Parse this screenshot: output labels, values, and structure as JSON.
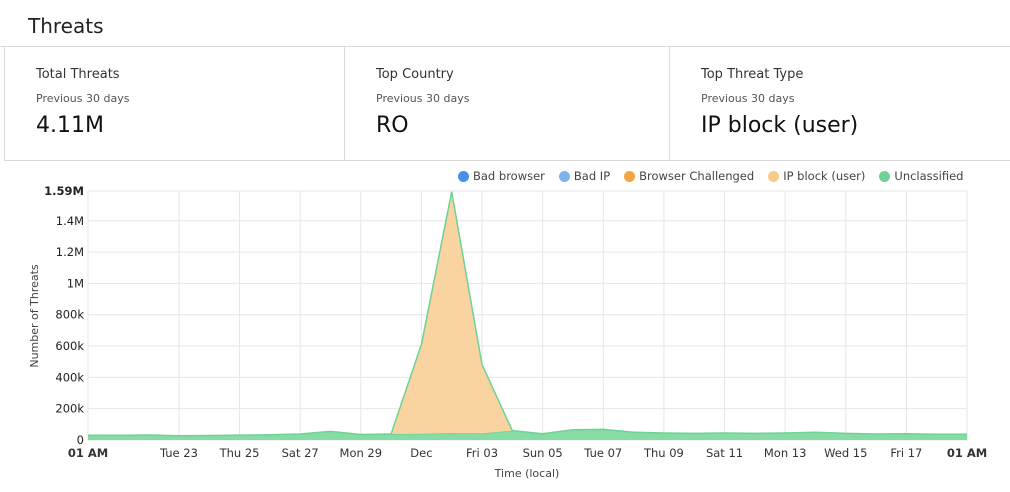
{
  "header": {
    "title": "Threats"
  },
  "stats": [
    {
      "label": "Total Threats",
      "sub": "Previous 30 days",
      "value": "4.11M"
    },
    {
      "label": "Top Country",
      "sub": "Previous 30 days",
      "value": "RO"
    },
    {
      "label": "Top Threat Type",
      "sub": "Previous 30 days",
      "value": "IP block (user)"
    }
  ],
  "legend": [
    {
      "name": "Bad browser",
      "color": "#4a8ee8"
    },
    {
      "name": "Bad IP",
      "color": "#7eb3ec"
    },
    {
      "name": "Browser Challenged",
      "color": "#f2a541"
    },
    {
      "name": "IP block (user)",
      "color": "#f7c98b"
    },
    {
      "name": "Unclassified",
      "color": "#6fd295"
    }
  ],
  "chart_data": {
    "type": "area",
    "ylabel": "Number of Threats",
    "xlabel": "Time (local)",
    "ylim": [
      0,
      1590000
    ],
    "y_ticks": [
      {
        "value": 0,
        "label": "0"
      },
      {
        "value": 200000,
        "label": "200k"
      },
      {
        "value": 400000,
        "label": "400k"
      },
      {
        "value": 600000,
        "label": "600k"
      },
      {
        "value": 800000,
        "label": "800k"
      },
      {
        "value": 1000000,
        "label": "1M"
      },
      {
        "value": 1200000,
        "label": "1.2M"
      },
      {
        "value": 1400000,
        "label": "1.4M"
      },
      {
        "value": 1590000,
        "label": "1.59M",
        "bold": true
      }
    ],
    "xlim": [
      0,
      29
    ],
    "x_ticks": [
      {
        "x": 0,
        "label": "01 AM",
        "bold": true
      },
      {
        "x": 3,
        "label": "Tue 23"
      },
      {
        "x": 5,
        "label": "Thu 25"
      },
      {
        "x": 7,
        "label": "Sat 27"
      },
      {
        "x": 9,
        "label": "Mon 29"
      },
      {
        "x": 11,
        "label": "Dec"
      },
      {
        "x": 13,
        "label": "Fri 03"
      },
      {
        "x": 15,
        "label": "Sun 05"
      },
      {
        "x": 17,
        "label": "Tue 07"
      },
      {
        "x": 19,
        "label": "Thu 09"
      },
      {
        "x": 21,
        "label": "Sat 11"
      },
      {
        "x": 23,
        "label": "Mon 13"
      },
      {
        "x": 25,
        "label": "Wed 15"
      },
      {
        "x": 27,
        "label": "Fri 17"
      },
      {
        "x": 29,
        "label": "01 AM",
        "bold": true
      }
    ],
    "x": [
      0,
      1,
      2,
      3,
      4,
      5,
      6,
      7,
      8,
      9,
      10,
      11,
      12,
      13,
      14,
      15,
      16,
      17,
      18,
      19,
      20,
      21,
      22,
      23,
      24,
      25,
      26,
      27,
      28,
      29
    ],
    "series": [
      {
        "name": "Unclassified",
        "color": "#86dca4",
        "values": [
          30000,
          30000,
          32000,
          27000,
          29000,
          31000,
          33000,
          38000,
          55000,
          35000,
          38000,
          40000,
          45000,
          42000,
          60000,
          40000,
          65000,
          68000,
          50000,
          45000,
          42000,
          45000,
          42000,
          45000,
          50000,
          42000,
          38000,
          40000,
          37000,
          37000
        ]
      },
      {
        "name": "IP block (user)",
        "color": "#f9d3a0",
        "values": [
          0,
          0,
          0,
          0,
          0,
          0,
          0,
          0,
          0,
          0,
          0,
          570000,
          1540000,
          440000,
          0,
          0,
          0,
          0,
          0,
          0,
          0,
          0,
          0,
          0,
          0,
          0,
          0,
          0,
          0,
          0
        ]
      }
    ]
  }
}
